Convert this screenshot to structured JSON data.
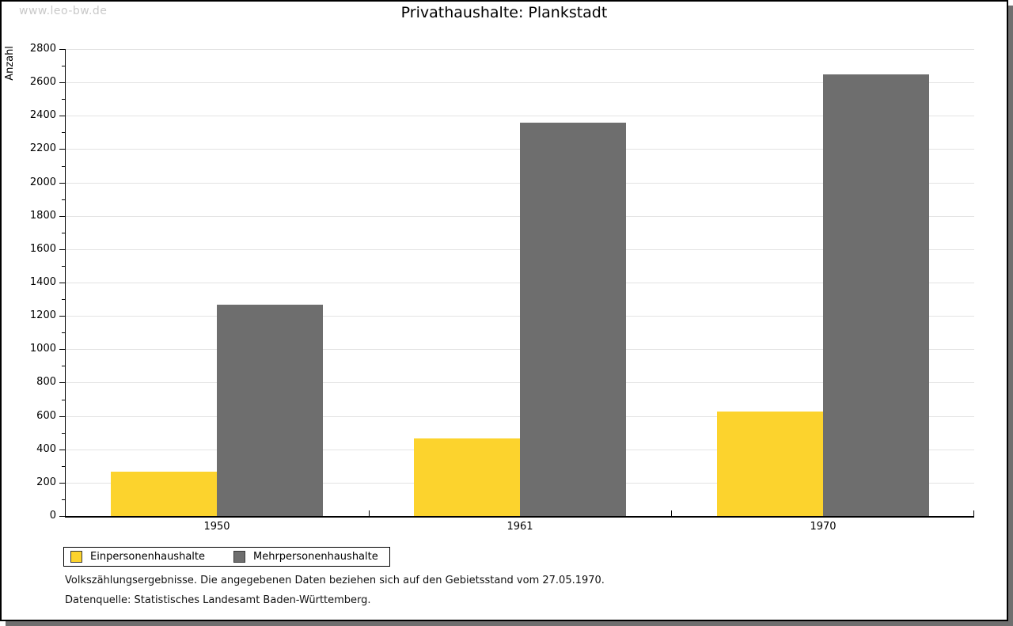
{
  "watermark": "www.leo-bw.de",
  "title": "Privathaushalte: Plankstadt",
  "chart_data": {
    "type": "bar",
    "title": "Privathaushalte: Plankstadt",
    "categories": [
      "1950",
      "1961",
      "1970"
    ],
    "series": [
      {
        "name": "Einpersonenhaushalte",
        "color": "#fcd32d",
        "values": [
          265,
          465,
          625
        ]
      },
      {
        "name": "Mehrpersonenhaushalte",
        "color": "#6e6e6e",
        "values": [
          1265,
          2360,
          2650
        ]
      }
    ],
    "xlabel": "",
    "ylabel": "Anzahl",
    "ylim": [
      0,
      2800
    ],
    "ytick_step": 200,
    "yminor_step": 100,
    "grid": true,
    "gridline_color": "#e3e3e3",
    "legend_position": "bottom-left"
  },
  "legend": {
    "items": [
      {
        "label": "Einpersonenhaushalte",
        "color": "#fcd32d"
      },
      {
        "label": "Mehrpersonenhaushalte",
        "color": "#6e6e6e"
      }
    ]
  },
  "footnotes": {
    "line1": "Volkszählungsergebnisse. Die angegebenen Daten beziehen sich auf den Gebietsstand vom 27.05.1970.",
    "line2": "Datenquelle: Statistisches Landesamt Baden-Württemberg."
  }
}
